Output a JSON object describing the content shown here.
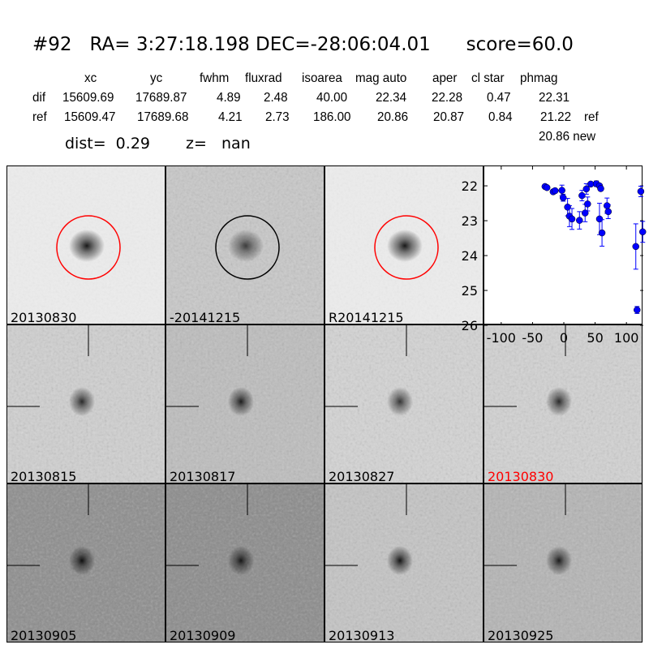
{
  "title": "#92   RA= 3:27:18.198 DEC=-28:06:04.01      score=60.0",
  "table": {
    "headers": [
      "xc",
      "yc",
      "fwhm",
      "fluxrad",
      "isoarea",
      "mag auto",
      "aper",
      "cl star",
      "phmag"
    ],
    "rows": [
      {
        "label": "dif",
        "values": [
          "15609.69",
          "17689.87",
          "4.89",
          "2.48",
          "40.00",
          "22.34",
          "22.28",
          "0.47",
          "22.31"
        ],
        "extra": ""
      },
      {
        "label": "ref",
        "values": [
          "15609.47",
          "17689.68",
          "4.21",
          "2.73",
          "186.00",
          "20.86",
          "20.87",
          "0.84",
          "21.22"
        ],
        "extra": "ref"
      }
    ],
    "phmag_new": "20.86 new"
  },
  "dist_text": "dist=  0.29",
  "z_text": "z=   nan",
  "panels": [
    {
      "label": "20130830",
      "label_color": "#000000",
      "circle": "#ff0000",
      "bg": "#ececec",
      "blob": 0.9
    },
    {
      "label": "-20141215",
      "label_color": "#000000",
      "circle": "#000000",
      "bg": "#c8c8c8",
      "blob": 0.7
    },
    {
      "label": "R20141215",
      "label_color": "#000000",
      "circle": "#ff0000",
      "bg": "#ececec",
      "blob": 0.9
    },
    {
      "label": "20130815",
      "label_color": "#000000",
      "bg": "#d0d0d0",
      "blob": 0.8
    },
    {
      "label": "20130817",
      "label_color": "#000000",
      "bg": "#bdbdbd",
      "blob": 0.85
    },
    {
      "label": "20130827",
      "label_color": "#000000",
      "bg": "#d4d4d4",
      "blob": 0.75
    },
    {
      "label": "20130830",
      "label_color": "#ff0000",
      "bg": "#d2d2d2",
      "blob": 0.8
    },
    {
      "label": "20130905",
      "label_color": "#000000",
      "bg": "#8c8c8c",
      "blob": 0.9
    },
    {
      "label": "20130909",
      "label_color": "#000000",
      "bg": "#8a8a8a",
      "blob": 0.85
    },
    {
      "label": "20130913",
      "label_color": "#000000",
      "bg": "#c4c4c4",
      "blob": 0.9
    },
    {
      "label": "20130925",
      "label_color": "#000000",
      "bg": "#b4b4b4",
      "blob": 0.85
    }
  ],
  "chart_data": {
    "type": "scatter",
    "title": "",
    "xlabel": "",
    "ylabel": "",
    "xlim": [
      -127,
      127
    ],
    "ylim": [
      26,
      21.44
    ],
    "y_inverted": true,
    "xticks": [
      -100,
      -50,
      0,
      50,
      100
    ],
    "yticks": [
      22,
      23,
      24,
      25,
      26
    ],
    "marker_color": "#0000ff",
    "grid": false,
    "points": [
      {
        "x": -30,
        "y": 22.02,
        "err": 0.05
      },
      {
        "x": -27,
        "y": 22.05,
        "err": 0.05
      },
      {
        "x": -17,
        "y": 22.17,
        "err": 0.06
      },
      {
        "x": -14,
        "y": 22.14,
        "err": 0.06
      },
      {
        "x": -3,
        "y": 22.13,
        "err": 0.15
      },
      {
        "x": -1,
        "y": 22.34,
        "err": 0.1
      },
      {
        "x": 6,
        "y": 22.61,
        "err": 0.25
      },
      {
        "x": 9,
        "y": 22.87,
        "err": 0.3
      },
      {
        "x": 13,
        "y": 22.95,
        "err": 0.3
      },
      {
        "x": 25,
        "y": 22.99,
        "err": 0.25
      },
      {
        "x": 29,
        "y": 22.28,
        "err": 0.15
      },
      {
        "x": 34,
        "y": 22.78,
        "err": 0.25
      },
      {
        "x": 36,
        "y": 22.09,
        "err": 0.15
      },
      {
        "x": 38,
        "y": 22.52,
        "err": 0.2
      },
      {
        "x": 43,
        "y": 21.95,
        "err": 0.05
      },
      {
        "x": 52,
        "y": 21.94,
        "err": 0.08
      },
      {
        "x": 57,
        "y": 22.0,
        "err": 0.05
      },
      {
        "x": 59,
        "y": 22.08,
        "err": 0.06
      },
      {
        "x": 57,
        "y": 22.95,
        "err": 0.45
      },
      {
        "x": 61,
        "y": 23.35,
        "err": 0.38
      },
      {
        "x": 69,
        "y": 22.57,
        "err": 0.22
      },
      {
        "x": 71,
        "y": 22.74,
        "err": 0.2
      },
      {
        "x": 115,
        "y": 23.74,
        "err": 0.65
      },
      {
        "x": 117,
        "y": 25.56,
        "err": 0.1
      },
      {
        "x": 123,
        "y": 22.16,
        "err": 0.15
      },
      {
        "x": 126,
        "y": 23.32,
        "err": 0.3
      }
    ]
  }
}
